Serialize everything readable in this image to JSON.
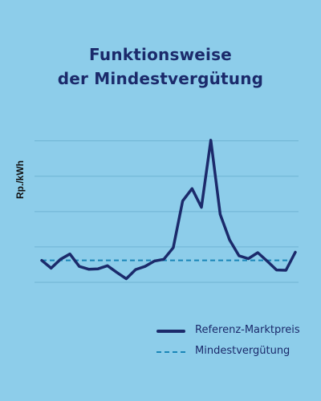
{
  "colors": {
    "background": "#8dcdea",
    "title": "#1b2a6b",
    "grid": "#6fb3d3",
    "series_market": "#1b2a6b",
    "series_minimum": "#1a86b8"
  },
  "chart_data": {
    "type": "line",
    "title_lines": [
      "Funktionsweise",
      "der Mindestvergütung"
    ],
    "xlabel": "",
    "ylabel": "Rp./kWh",
    "grid": true,
    "grid_values": [
      0,
      1,
      2,
      3,
      4
    ],
    "ylim": [
      0,
      4.4
    ],
    "legend_position": "bottom-right",
    "series": [
      {
        "name": "Referenz-Marktpreis",
        "style": "solid",
        "values": [
          0.62,
          0.4,
          0.65,
          0.8,
          0.45,
          0.37,
          0.38,
          0.47,
          0.28,
          0.1,
          0.36,
          0.45,
          0.6,
          0.65,
          0.98,
          2.3,
          2.65,
          2.12,
          4.02,
          1.92,
          1.2,
          0.75,
          0.67,
          0.84,
          0.6,
          0.35,
          0.34,
          0.85
        ]
      },
      {
        "name": "Mindestvergütung",
        "style": "dashed",
        "values": [
          0.62,
          0.62
        ]
      }
    ]
  }
}
